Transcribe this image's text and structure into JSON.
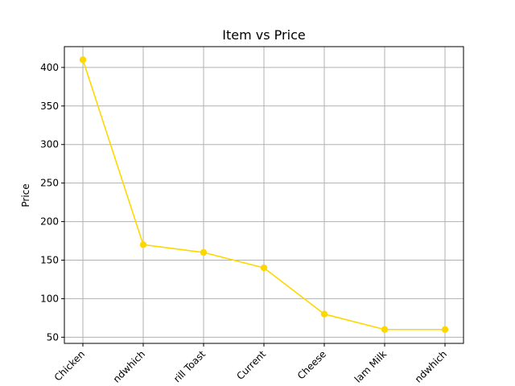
{
  "chart_data": {
    "type": "line",
    "title": "Item vs Price",
    "xlabel": "",
    "ylabel": "Price",
    "categories": [
      "Chicken",
      "ndwhich",
      "rill Toast",
      "Current",
      "Cheese",
      "lam Milk",
      "ndwhich"
    ],
    "series": [
      {
        "values": [
          410,
          170,
          160,
          140,
          80,
          60,
          60
        ]
      }
    ],
    "ylim": [
      42,
      427
    ],
    "yticks": [
      50,
      100,
      150,
      200,
      250,
      300,
      350,
      400
    ],
    "grid": true,
    "colors": {
      "line": "#FFD700",
      "grid": "#b0b0b0",
      "axis": "#000000"
    }
  }
}
